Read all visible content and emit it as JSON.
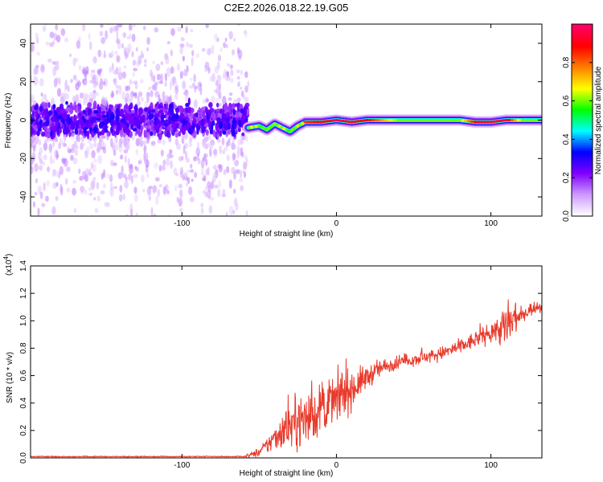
{
  "title": "C2E2.2026.018.22.19.G05",
  "chart_data": [
    {
      "type": "heatmap",
      "xlabel": "Height of straight line (km)",
      "ylabel": "Frequency (Hz)",
      "xlim": [
        -198,
        133
      ],
      "ylim": [
        -50,
        50
      ],
      "x_ticks": [
        -100,
        0,
        100
      ],
      "x_tick_labels": [
        "-100",
        "0",
        "100"
      ],
      "y_ticks": [
        -40,
        -20,
        0,
        20,
        40
      ],
      "y_tick_labels": [
        "-40",
        "-20",
        "0",
        "20",
        "40"
      ],
      "colorbar": {
        "label": "Normalized spectral amplitude",
        "range": [
          0,
          1
        ],
        "ticks": [
          0.0,
          0.2,
          0.4,
          0.6,
          0.8
        ],
        "tick_labels": [
          "0.0",
          "0.2",
          "0.4",
          "0.6",
          "0.8"
        ],
        "colors": [
          "#ffffff",
          "#cc99ff",
          "#8000ff",
          "#0000ff",
          "#00ffff",
          "#00ff00",
          "#ffff00",
          "#ff8000",
          "#ff0000",
          "#ff0066"
        ]
      },
      "noise_region": {
        "x_range": [
          -198,
          -57
        ],
        "freq_spread": 50,
        "core_spread": 8
      },
      "signal_track": {
        "x": [
          -57,
          -50,
          -45,
          -40,
          -35,
          -30,
          -25,
          -20,
          -10,
          0,
          10,
          20,
          40,
          60,
          80,
          90,
          100,
          110,
          120,
          133
        ],
        "freq": [
          -4,
          -3,
          -5,
          -2,
          -4,
          -6,
          -3,
          -1,
          -1,
          0,
          -1,
          0,
          0,
          0,
          0,
          -1,
          -1,
          0,
          0,
          0
        ],
        "peak_amplitude": [
          0.55,
          0.65,
          0.7,
          0.6,
          0.7,
          0.65,
          0.75,
          0.85,
          0.9,
          0.95,
          0.95,
          0.9,
          0.6,
          0.6,
          0.6,
          0.9,
          0.95,
          0.95,
          0.6,
          0.6
        ]
      }
    },
    {
      "type": "line",
      "xlabel": "Height of straight line (km)",
      "ylabel": "SNR (10 * v/v)",
      "scale_label": "(x10",
      "scale_exp": "4",
      "scale_close": ")",
      "xlim": [
        -198,
        133
      ],
      "ylim": [
        0,
        1.4
      ],
      "x_ticks": [
        -100,
        0,
        100
      ],
      "x_tick_labels": [
        "-100",
        "0",
        "100"
      ],
      "y_ticks": [
        0,
        0.2,
        0.4,
        0.6,
        0.8,
        1.0,
        1.2,
        1.4
      ],
      "y_tick_labels": [
        "0.0",
        "0.2",
        "0.4",
        "0.6",
        "0.8",
        "1.0",
        "1.2",
        "1.4"
      ],
      "line_color": "#e8392a",
      "series": [
        {
          "x": [
            -198,
            -150,
            -100,
            -60,
            -50,
            -45,
            -40,
            -35,
            -30,
            -25,
            -20,
            -15,
            -10,
            -5,
            0,
            5,
            10,
            15,
            20,
            25,
            30,
            40,
            50,
            60,
            70,
            80,
            90,
            100,
            105,
            110,
            115,
            120,
            125,
            133
          ],
          "y": [
            0.01,
            0.01,
            0.01,
            0.01,
            0.04,
            0.09,
            0.15,
            0.2,
            0.24,
            0.27,
            0.29,
            0.31,
            0.35,
            0.4,
            0.43,
            0.47,
            0.5,
            0.55,
            0.59,
            0.63,
            0.66,
            0.7,
            0.72,
            0.74,
            0.77,
            0.81,
            0.86,
            0.92,
            0.94,
            0.95,
            1.0,
            1.04,
            1.08,
            1.11
          ],
          "noise_amplitude": [
            0.003,
            0.003,
            0.003,
            0.003,
            0.03,
            0.05,
            0.08,
            0.12,
            0.14,
            0.15,
            0.16,
            0.16,
            0.15,
            0.15,
            0.14,
            0.13,
            0.12,
            0.09,
            0.07,
            0.06,
            0.05,
            0.04,
            0.04,
            0.04,
            0.04,
            0.05,
            0.05,
            0.06,
            0.08,
            0.2,
            0.12,
            0.05,
            0.04,
            0.04
          ]
        }
      ]
    }
  ]
}
